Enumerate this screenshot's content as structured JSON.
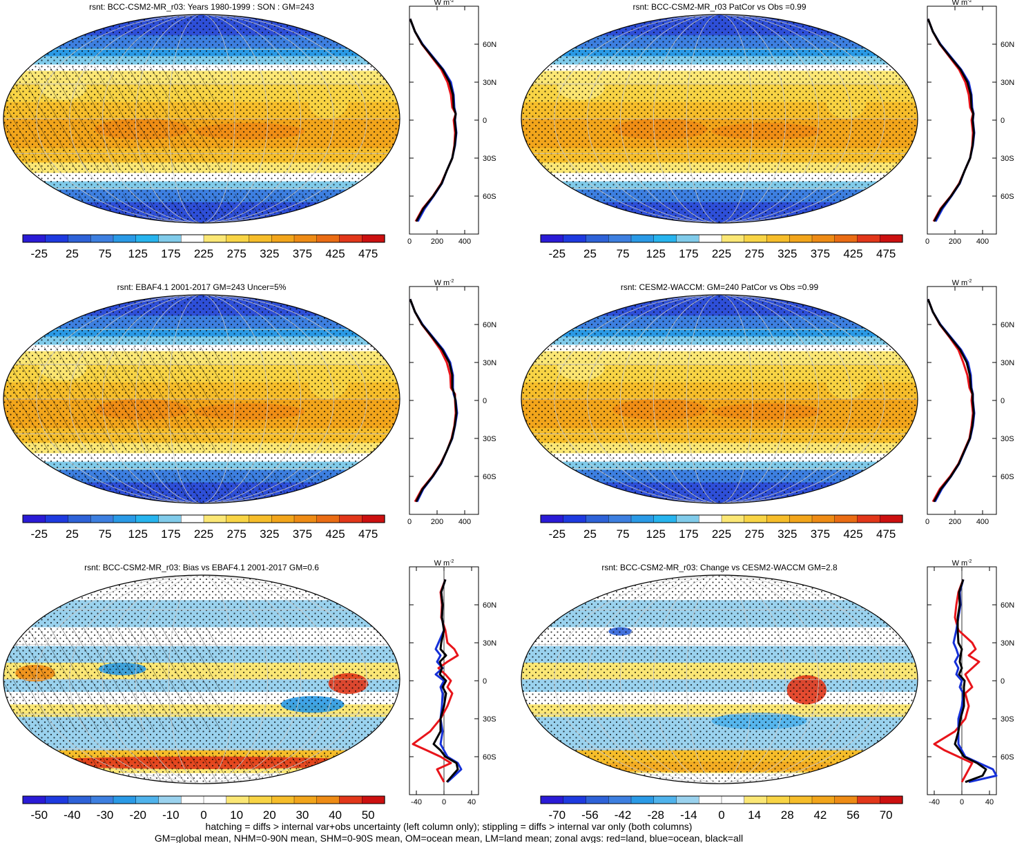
{
  "figure": {
    "footnote_line1": "hatching = diffs > internal var+obs uncertainty (left column only); stippling = diffs > internal var only (both columns)",
    "footnote_line2": "GM=global mean, NHM=0-90N mean, SHM=0-90S mean, OM=ocean mean, LM=land mean; zonal avgs: red=land, blue=ocean, black=all",
    "zonal_unit": "W m",
    "zonal_unit_sup": "-2",
    "line_colors": {
      "land": "#e8141a",
      "ocean": "#1530d8",
      "all": "#000000"
    }
  },
  "chart_data": [
    {
      "type": "heatmap",
      "title": "rsnt: BCC-CSM2-MR_r03: Years 1980-1999 : SON : GM=243",
      "field": "mean",
      "colorbar_ticks": [
        "-25",
        "25",
        "75",
        "125",
        "175",
        "225",
        "275",
        "325",
        "375",
        "425",
        "475"
      ],
      "colorbar_range": [
        -50,
        500
      ],
      "hatching": true,
      "zonal": {
        "xlim": [
          0,
          500
        ],
        "xticks": [
          "0",
          "200",
          "400"
        ],
        "yticks": [
          "60N",
          "30N",
          "0",
          "30S",
          "60S"
        ],
        "lat": [
          80,
          70,
          60,
          50,
          40,
          30,
          20,
          10,
          5,
          0,
          -10,
          -20,
          -30,
          -40,
          -50,
          -60,
          -70,
          -80
        ],
        "land": [
          5,
          40,
          90,
          160,
          230,
          275,
          300,
          310,
          335,
          320,
          330,
          325,
          310,
          270,
          230,
          170,
          95,
          45
        ],
        "ocean": [
          5,
          40,
          95,
          170,
          245,
          300,
          320,
          325,
          335,
          330,
          340,
          330,
          310,
          270,
          235,
          175,
          110,
          60
        ],
        "all": [
          5,
          40,
          92,
          165,
          240,
          290,
          315,
          320,
          335,
          328,
          337,
          328,
          310,
          270,
          233,
          172,
          100,
          50
        ]
      }
    },
    {
      "type": "heatmap",
      "title": "rsnt: BCC-CSM2-MR_r03 PatCor vs Obs =0.99",
      "field": "mean",
      "colorbar_ticks": [
        "-25",
        "25",
        "75",
        "125",
        "175",
        "225",
        "275",
        "325",
        "375",
        "425",
        "475"
      ],
      "colorbar_range": [
        -50,
        500
      ],
      "hatching": false,
      "zonal": {
        "xlim": [
          0,
          500
        ],
        "xticks": [
          "0",
          "200",
          "400"
        ],
        "yticks": [
          "60N",
          "30N",
          "0",
          "30S",
          "60S"
        ],
        "lat": [
          80,
          70,
          60,
          50,
          40,
          30,
          20,
          10,
          5,
          0,
          -10,
          -20,
          -30,
          -40,
          -50,
          -60,
          -70,
          -80
        ],
        "land": [
          5,
          40,
          90,
          160,
          230,
          275,
          300,
          310,
          330,
          320,
          330,
          325,
          310,
          270,
          230,
          170,
          95,
          45
        ],
        "ocean": [
          5,
          40,
          95,
          170,
          245,
          300,
          320,
          325,
          335,
          330,
          340,
          330,
          310,
          270,
          235,
          175,
          110,
          60
        ],
        "all": [
          5,
          40,
          92,
          165,
          240,
          290,
          315,
          320,
          333,
          328,
          337,
          328,
          310,
          270,
          233,
          172,
          100,
          50
        ]
      }
    },
    {
      "type": "heatmap",
      "title": "rsnt: EBAF4.1 2001-2017 GM=243 Uncer=5%",
      "field": "mean",
      "colorbar_ticks": [
        "-25",
        "25",
        "75",
        "125",
        "175",
        "225",
        "275",
        "325",
        "375",
        "425",
        "475"
      ],
      "colorbar_range": [
        -50,
        500
      ],
      "hatching": true,
      "zonal": {
        "xlim": [
          0,
          500
        ],
        "xticks": [
          "0",
          "200",
          "400"
        ],
        "yticks": [
          "60N",
          "30N",
          "0",
          "30S",
          "60S"
        ],
        "lat": [
          80,
          70,
          60,
          50,
          40,
          30,
          20,
          10,
          5,
          0,
          -10,
          -20,
          -30,
          -40,
          -50,
          -60,
          -70,
          -80
        ],
        "land": [
          5,
          40,
          90,
          160,
          225,
          270,
          295,
          300,
          330,
          330,
          335,
          325,
          305,
          270,
          225,
          165,
          90,
          40
        ],
        "ocean": [
          5,
          40,
          95,
          170,
          245,
          295,
          315,
          315,
          320,
          335,
          345,
          330,
          310,
          270,
          230,
          170,
          100,
          55
        ],
        "all": [
          5,
          40,
          92,
          165,
          238,
          288,
          310,
          310,
          325,
          333,
          340,
          328,
          308,
          270,
          228,
          168,
          95,
          48
        ]
      }
    },
    {
      "type": "heatmap",
      "title": "rsnt: CESM2-WACCM: GM=240 PatCor vs Obs =0.99",
      "field": "mean",
      "colorbar_ticks": [
        "-25",
        "25",
        "75",
        "125",
        "175",
        "225",
        "275",
        "325",
        "375",
        "425",
        "475"
      ],
      "colorbar_range": [
        -50,
        500
      ],
      "hatching": false,
      "zonal": {
        "xlim": [
          0,
          500
        ],
        "xticks": [
          "0",
          "200",
          "400"
        ],
        "yticks": [
          "60N",
          "30N",
          "0",
          "30S",
          "60S"
        ],
        "lat": [
          80,
          70,
          60,
          50,
          40,
          30,
          20,
          10,
          5,
          0,
          -10,
          -20,
          -30,
          -40,
          -50,
          -60,
          -70,
          -80
        ],
        "land": [
          5,
          40,
          90,
          160,
          225,
          260,
          290,
          305,
          325,
          320,
          330,
          320,
          305,
          265,
          225,
          165,
          90,
          40
        ],
        "ocean": [
          5,
          40,
          95,
          170,
          245,
          295,
          315,
          320,
          330,
          330,
          340,
          330,
          310,
          270,
          230,
          172,
          105,
          55
        ],
        "all": [
          5,
          40,
          92,
          165,
          238,
          285,
          308,
          315,
          328,
          328,
          336,
          326,
          308,
          268,
          228,
          170,
          98,
          48
        ]
      }
    },
    {
      "type": "heatmap",
      "title": "rsnt: BCC-CSM2-MR_r03: Bias vs EBAF4.1 2001-2017  GM=0.6",
      "field": "bias",
      "colorbar_ticks": [
        "-50",
        "-40",
        "-30",
        "-20",
        "-10",
        "0",
        "10",
        "20",
        "30",
        "40",
        "50"
      ],
      "colorbar_range": [
        -55,
        55
      ],
      "hatching": true,
      "zonal": {
        "xlim": [
          -50,
          50
        ],
        "xticks": [
          "-40",
          "0",
          "40"
        ],
        "yticks": [
          "60N",
          "30N",
          "0",
          "30S",
          "60S"
        ],
        "lat": [
          80,
          70,
          60,
          50,
          40,
          30,
          25,
          20,
          15,
          10,
          5,
          0,
          -5,
          -10,
          -20,
          -30,
          -40,
          -50,
          -55,
          -60,
          -65,
          -70,
          -75,
          -80
        ],
        "land": [
          2,
          -5,
          -3,
          -4,
          2,
          5,
          15,
          20,
          5,
          -8,
          2,
          10,
          5,
          12,
          5,
          -5,
          -20,
          -45,
          -25,
          -5,
          10,
          -10,
          -5,
          0
        ],
        "ocean": [
          2,
          -4,
          -2,
          -3,
          0,
          -8,
          -12,
          -5,
          -10,
          -2,
          -12,
          0,
          -5,
          -2,
          -3,
          -5,
          -2,
          -5,
          0,
          5,
          20,
          25,
          15,
          5
        ],
        "all": [
          2,
          -4,
          -2,
          -3,
          0,
          -4,
          -5,
          3,
          -6,
          -3,
          -6,
          3,
          -2,
          3,
          0,
          -5,
          -5,
          -15,
          -5,
          2,
          18,
          20,
          12,
          4
        ]
      }
    },
    {
      "type": "heatmap",
      "title": "rsnt: BCC-CSM2-MR_r03: Change vs CESM2-WACCM GM=2.8",
      "field": "diff",
      "colorbar_ticks": [
        "-70",
        "-56",
        "-42",
        "-28",
        "-14",
        "0",
        "14",
        "28",
        "42",
        "56",
        "70"
      ],
      "colorbar_range": [
        -77,
        77
      ],
      "hatching": false,
      "zonal": {
        "xlim": [
          -50,
          50
        ],
        "xticks": [
          "-40",
          "0",
          "40"
        ],
        "yticks": [
          "60N",
          "30N",
          "0",
          "30S",
          "60S"
        ],
        "lat": [
          80,
          70,
          60,
          50,
          40,
          30,
          25,
          20,
          15,
          10,
          5,
          0,
          -5,
          -10,
          -20,
          -30,
          -40,
          -50,
          -55,
          -60,
          -65,
          -70,
          -75,
          -80
        ],
        "land": [
          2,
          -5,
          -8,
          -10,
          -5,
          15,
          20,
          10,
          25,
          15,
          5,
          10,
          15,
          5,
          10,
          5,
          -10,
          -40,
          -25,
          -5,
          15,
          10,
          5,
          0
        ],
        "ocean": [
          2,
          -3,
          -2,
          -5,
          -8,
          -12,
          -8,
          -5,
          -10,
          -5,
          -8,
          0,
          -3,
          2,
          0,
          -5,
          -5,
          -5,
          0,
          5,
          25,
          45,
          50,
          10
        ],
        "all": [
          2,
          -4,
          -3,
          -6,
          -6,
          -5,
          0,
          -2,
          -3,
          0,
          -4,
          4,
          3,
          3,
          3,
          -2,
          -5,
          -10,
          -3,
          3,
          22,
          35,
          30,
          5
        ]
      }
    }
  ]
}
